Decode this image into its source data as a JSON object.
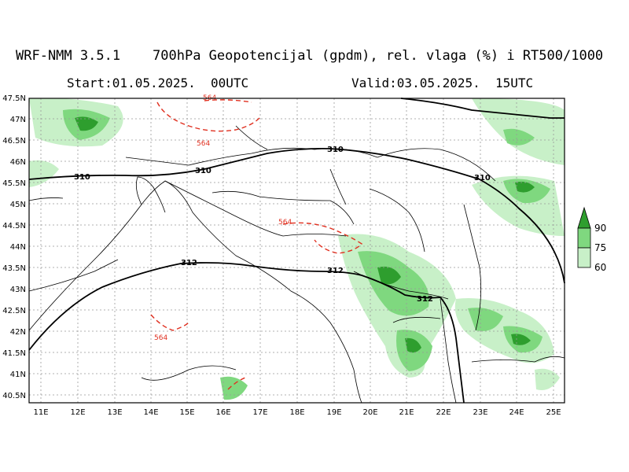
{
  "header": {
    "model": "WRF-NMM 3.5.1",
    "product": "700hPa Geopotencijal (gpdm), rel. vlaga (%) i RT500/1000",
    "start": "Start:01.05.2025.  00UTC",
    "valid": "Valid:03.05.2025.  15UTC"
  },
  "axes": {
    "lat_labels": [
      "47.5N",
      "47N",
      "46.5N",
      "46N",
      "45.5N",
      "45N",
      "44.5N",
      "44N",
      "43.5N",
      "43N",
      "42.5N",
      "42N",
      "41.5N",
      "41N",
      "40.5N"
    ],
    "lon_labels": [
      "11E",
      "12E",
      "13E",
      "14E",
      "15E",
      "16E",
      "17E",
      "18E",
      "19E",
      "20E",
      "21E",
      "22E",
      "23E",
      "24E",
      "25E"
    ]
  },
  "contours": {
    "geopotential_labels": [
      "310",
      "310",
      "310",
      "310",
      "312",
      "312",
      "312"
    ],
    "thickness_labels": [
      "564",
      "564",
      "564",
      "564"
    ]
  },
  "legend": {
    "levels": [
      "90",
      "75",
      "60"
    ],
    "colors": [
      "#2e9e2e",
      "#7fd87f",
      "#c8f0c8"
    ]
  }
}
